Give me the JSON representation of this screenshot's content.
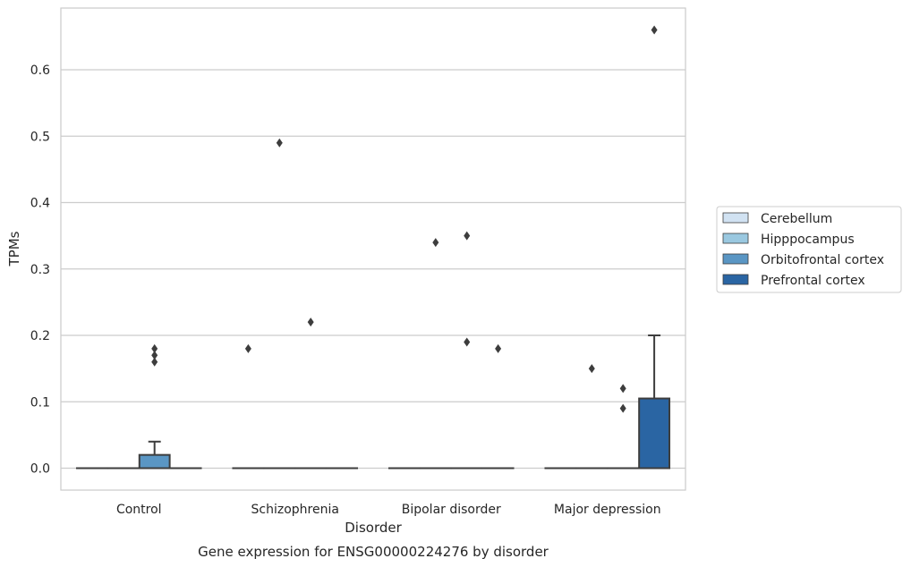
{
  "chart_data": {
    "type": "box",
    "title": "Gene expression for ENSG00000224276 by disorder",
    "xlabel": "Disorder",
    "ylabel": "TPMs",
    "ylim": [
      -0.033,
      0.693
    ],
    "yticks": [
      "0.0",
      "0.1",
      "0.2",
      "0.3",
      "0.4",
      "0.5",
      "0.6"
    ],
    "grid": true,
    "legend_position": "right",
    "categories": [
      "Control",
      "Schizophrenia",
      "Bipolar disorder",
      "Major depression"
    ],
    "series": [
      {
        "name": "Cerebellum",
        "color": "#d1e2f2",
        "boxes": [
          {
            "q1": 0,
            "median": 0,
            "q3": 0,
            "whislo": 0,
            "whishi": 0,
            "outliers": []
          },
          {
            "q1": 0,
            "median": 0,
            "q3": 0,
            "whislo": 0,
            "whishi": 0,
            "outliers": [
              0.18
            ]
          },
          {
            "q1": 0,
            "median": 0,
            "q3": 0,
            "whislo": 0,
            "whishi": 0,
            "outliers": []
          },
          {
            "q1": 0,
            "median": 0,
            "q3": 0,
            "whislo": 0,
            "whishi": 0,
            "outliers": []
          }
        ]
      },
      {
        "name": "Hipppocampus",
        "color": "#9ac8e0",
        "boxes": [
          {
            "q1": 0,
            "median": 0,
            "q3": 0,
            "whislo": 0,
            "whishi": 0,
            "outliers": []
          },
          {
            "q1": 0,
            "median": 0,
            "q3": 0,
            "whislo": 0,
            "whishi": 0,
            "outliers": [
              0.49
            ]
          },
          {
            "q1": 0,
            "median": 0,
            "q3": 0,
            "whislo": 0,
            "whishi": 0,
            "outliers": [
              0.34
            ]
          },
          {
            "q1": 0,
            "median": 0,
            "q3": 0,
            "whislo": 0,
            "whishi": 0,
            "outliers": [
              0.15
            ]
          }
        ]
      },
      {
        "name": "Orbitofrontal cortex",
        "color": "#5a96c4",
        "boxes": [
          {
            "q1": 0,
            "median": 0,
            "q3": 0.02,
            "whislo": 0,
            "whishi": 0.04,
            "outliers": [
              0.16,
              0.17,
              0.18
            ]
          },
          {
            "q1": 0,
            "median": 0,
            "q3": 0,
            "whislo": 0,
            "whishi": 0,
            "outliers": [
              0.22
            ]
          },
          {
            "q1": 0,
            "median": 0,
            "q3": 0,
            "whislo": 0,
            "whishi": 0,
            "outliers": [
              0.19,
              0.35
            ]
          },
          {
            "q1": 0,
            "median": 0,
            "q3": 0,
            "whislo": 0,
            "whishi": 0,
            "outliers": [
              0.09,
              0.12
            ]
          }
        ]
      },
      {
        "name": "Prefrontal cortex",
        "color": "#2a65a3",
        "boxes": [
          {
            "q1": 0,
            "median": 0,
            "q3": 0,
            "whislo": 0,
            "whishi": 0,
            "outliers": []
          },
          {
            "q1": 0,
            "median": 0,
            "q3": 0,
            "whislo": 0,
            "whishi": 0,
            "outliers": []
          },
          {
            "q1": 0,
            "median": 0,
            "q3": 0,
            "whislo": 0,
            "whishi": 0,
            "outliers": [
              0.18
            ]
          },
          {
            "q1": 0,
            "median": 0,
            "q3": 0.105,
            "whislo": 0,
            "whishi": 0.2,
            "outliers": [
              0.66
            ]
          }
        ]
      }
    ]
  }
}
